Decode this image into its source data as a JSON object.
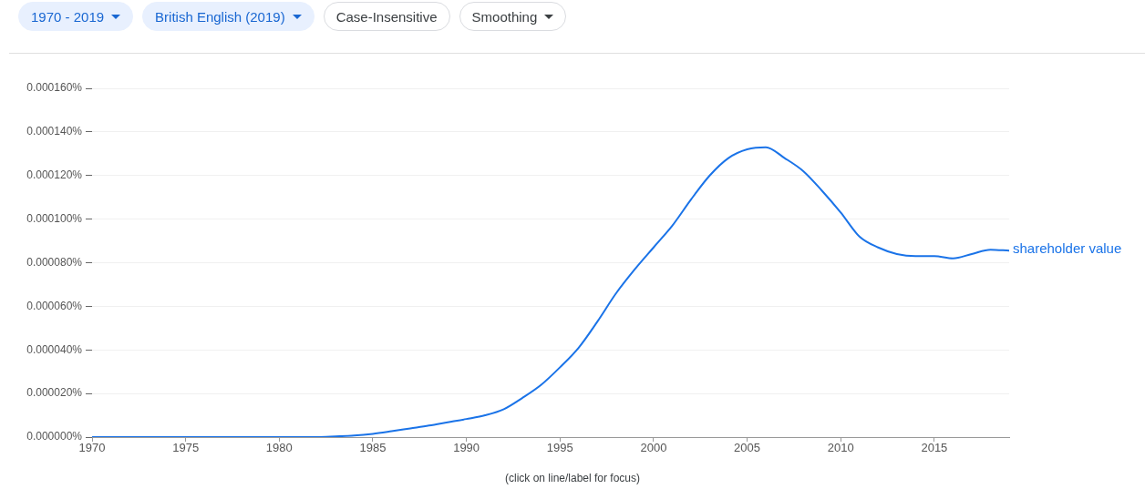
{
  "chart_data": {
    "type": "line",
    "annotations": [
      "1970 - 2019",
      "British English (2019)",
      "Case-Insensitive",
      "Smoothing",
      "(click on line/label for focus)"
    ],
    "x": [
      1970,
      1971,
      1972,
      1973,
      1974,
      1975,
      1976,
      1977,
      1978,
      1979,
      1980,
      1981,
      1982,
      1983,
      1984,
      1985,
      1986,
      1987,
      1988,
      1989,
      1990,
      1991,
      1992,
      1993,
      1994,
      1995,
      1996,
      1997,
      1998,
      1999,
      2000,
      2001,
      2002,
      2003,
      2004,
      2005,
      2006,
      2007,
      2008,
      2009,
      2010,
      2011,
      2012,
      2013,
      2014,
      2015,
      2016,
      2017,
      2018,
      2019
    ],
    "series": [
      {
        "name": "shareholder value",
        "color": "#1a73e8",
        "values": [
          0,
          0,
          0,
          0,
          0,
          0,
          0,
          0,
          0,
          0,
          0,
          0,
          0,
          3e-07,
          7e-07,
          1.5e-06,
          2.7e-06,
          4e-06,
          5.3e-06,
          6.8e-06,
          8.3e-06,
          1e-05,
          1.28e-05,
          1.8e-05,
          2.4e-05,
          3.2e-05,
          4.1e-05,
          5.3e-05,
          6.6e-05,
          7.7e-05,
          8.7e-05,
          9.7e-05,
          0.000109,
          0.00012,
          0.000128,
          0.000132,
          0.000133,
          0.000128,
          0.000122,
          0.000113,
          0.000103,
          9.2e-05,
          8.7e-05,
          8.4e-05,
          8.3e-05,
          8.3e-05,
          8.2e-05,
          8.4e-05,
          8.6e-05,
          8.55e-05
        ]
      }
    ],
    "xlim": [
      1970,
      2019
    ],
    "xticks": [
      1970,
      1975,
      1980,
      1985,
      1990,
      1995,
      2000,
      2005,
      2010,
      2015
    ],
    "ylim": [
      0,
      0.00016
    ],
    "yticks": [
      {
        "value": 0,
        "label": "0.000000%"
      },
      {
        "value": 2e-05,
        "label": "0.000020%"
      },
      {
        "value": 4e-05,
        "label": "0.000040%"
      },
      {
        "value": 6e-05,
        "label": "0.000060%"
      },
      {
        "value": 8e-05,
        "label": "0.000080%"
      },
      {
        "value": 0.0001,
        "label": "0.000100%"
      },
      {
        "value": 0.00012,
        "label": "0.000120%"
      },
      {
        "value": 0.00014,
        "label": "0.000140%"
      },
      {
        "value": 0.00016,
        "label": "0.000160%"
      }
    ],
    "grid": "y",
    "legend": false,
    "marker": "none",
    "line_style": "solid"
  }
}
